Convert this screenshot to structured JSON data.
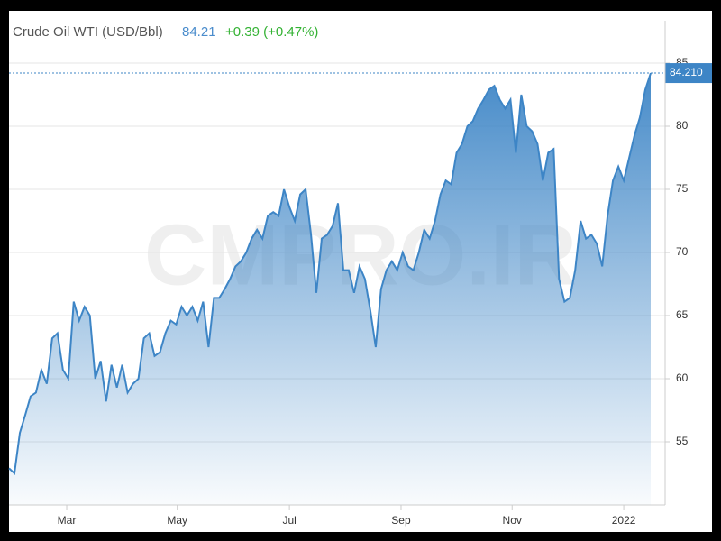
{
  "chart_data": {
    "type": "area",
    "title": "Crude Oil WTI (USD/Bbl)",
    "price": "84.21",
    "change": "+0.39 (+0.47%)",
    "watermark": "CMPRO.IR",
    "last_value_label": "84.210",
    "series": [
      {
        "name": "Crude Oil WTI",
        "color": "#3d85c6",
        "values": [
          52.9,
          52.5,
          55.7,
          57.1,
          58.6,
          58.9,
          60.7,
          59.6,
          63.2,
          63.6,
          60.7,
          60,
          66.1,
          64.6,
          65.7,
          65,
          60,
          61.4,
          58.2,
          61.1,
          59.3,
          61.1,
          58.9,
          59.6,
          60,
          63.2,
          63.6,
          61.8,
          62.1,
          63.6,
          64.6,
          64.3,
          65.7,
          65,
          65.7,
          64.6,
          66.1,
          62.5,
          66.4,
          66.4,
          67.1,
          67.9,
          68.9,
          69.3,
          70,
          71.1,
          71.8,
          71.1,
          72.9,
          73.2,
          72.9,
          75,
          73.6,
          72.5,
          74.6,
          75,
          71.4,
          66.8,
          71.1,
          71.4,
          72.1,
          73.9,
          68.6,
          68.6,
          66.8,
          68.9,
          67.9,
          65.4,
          62.5,
          67.1,
          68.6,
          69.3,
          68.6,
          70,
          68.9,
          68.6,
          70,
          71.8,
          71.1,
          72.5,
          74.6,
          75.7,
          75.4,
          77.9,
          78.6,
          80,
          80.4,
          81.4,
          82.1,
          82.9,
          83.2,
          82.1,
          81.4,
          82.1,
          77.9,
          82.5,
          80,
          79.6,
          78.6,
          75.7,
          77.9,
          78.2,
          67.9,
          66.1,
          66.4,
          68.6,
          72.5,
          71.1,
          71.4,
          70.7,
          68.9,
          72.9,
          75.7,
          76.8,
          75.7,
          77.5,
          79.3,
          80.7,
          82.9,
          84.21
        ]
      }
    ],
    "xlim": [
      0,
      119
    ],
    "xticks": [
      {
        "value": 10.7,
        "label": "Mar"
      },
      {
        "value": 31.2,
        "label": "May"
      },
      {
        "value": 52,
        "label": "Jul"
      },
      {
        "value": 72.7,
        "label": "Sep"
      },
      {
        "value": 93.3,
        "label": "Nov"
      },
      {
        "value": 114,
        "label": "2022"
      }
    ],
    "ylim": [
      50,
      85.5
    ],
    "yticks": [
      55,
      60,
      65,
      70,
      75,
      80,
      85
    ],
    "grid": true
  }
}
